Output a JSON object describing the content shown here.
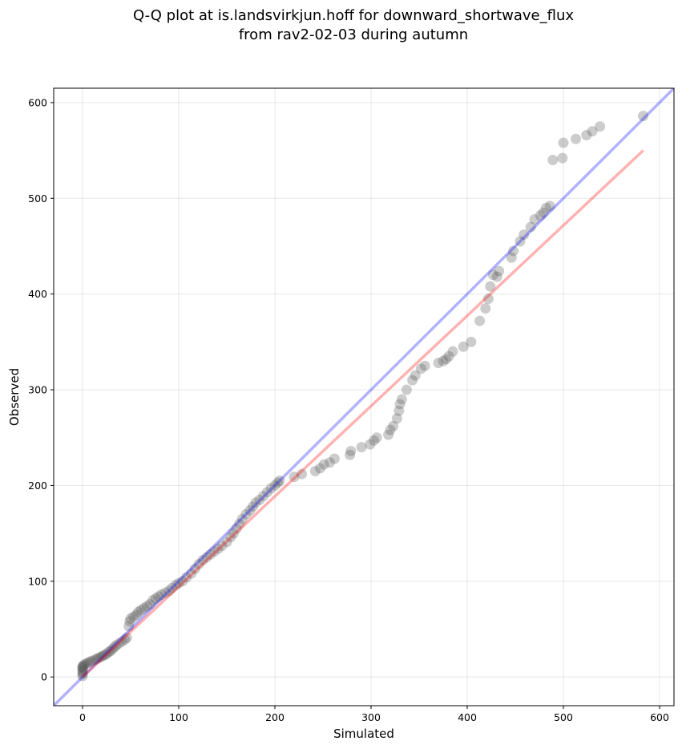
{
  "chart_data": {
    "type": "scatter",
    "title": "Q-Q plot at is.landsvirkjun.hoff for downward_shortwave_flux",
    "subtitle": "from rav2-02-03 during autumn",
    "xlabel": "Simulated",
    "ylabel": "Observed",
    "xlim": [
      -30,
      615
    ],
    "ylim": [
      -30,
      615
    ],
    "xticks": [
      0,
      100,
      200,
      300,
      400,
      500,
      600
    ],
    "yticks": [
      0,
      100,
      200,
      300,
      400,
      500,
      600
    ],
    "grid": true,
    "colors": {
      "points": "#555555",
      "identity_line": "#0000ff",
      "fit_line": "#ff0000"
    },
    "identity_line": {
      "x": [
        -30,
        615
      ],
      "y": [
        -30,
        615
      ]
    },
    "fit_line": {
      "x": [
        0,
        583
      ],
      "y": [
        0,
        550
      ]
    },
    "points": {
      "x": [
        0,
        0,
        0,
        0,
        0,
        0,
        0,
        1,
        2,
        4,
        6,
        8,
        10,
        13,
        15,
        17,
        19,
        21,
        23,
        25,
        27,
        29,
        31,
        33,
        35,
        38,
        41,
        44,
        46,
        48,
        49,
        50,
        53,
        56,
        58,
        61,
        64,
        67,
        70,
        73,
        76,
        79,
        82,
        86,
        90,
        93,
        97,
        100,
        104,
        108,
        113,
        117,
        121,
        125,
        129,
        133,
        137,
        141,
        145,
        150,
        154,
        157,
        160,
        163,
        166,
        170,
        174,
        177,
        180,
        184,
        188,
        192,
        196,
        200,
        203,
        205,
        220,
        228,
        242,
        247,
        251,
        257,
        262,
        278,
        279,
        290,
        299,
        303,
        306,
        318,
        320,
        323,
        327,
        329,
        330,
        332,
        337,
        343,
        346,
        352,
        356,
        370,
        375,
        378,
        381,
        385,
        396,
        404,
        413,
        419,
        422,
        424,
        427,
        431,
        433,
        446,
        448,
        455,
        459,
        466,
        470,
        476,
        479,
        482,
        486,
        489,
        499,
        500,
        513,
        524,
        530,
        538,
        583
      ],
      "y": [
        1,
        3,
        5,
        7,
        9,
        10,
        11,
        12,
        13,
        14,
        15,
        16,
        17,
        18,
        19,
        20,
        21,
        22,
        23,
        24,
        26,
        27,
        29,
        31,
        33,
        35,
        37,
        39,
        41,
        53,
        58,
        61,
        63,
        65,
        68,
        70,
        72,
        74,
        76,
        80,
        82,
        84,
        86,
        88,
        90,
        93,
        96,
        98,
        100,
        104,
        108,
        113,
        118,
        122,
        125,
        128,
        131,
        134,
        137,
        141,
        146,
        150,
        155,
        160,
        165,
        170,
        174,
        178,
        182,
        185,
        189,
        193,
        197,
        200,
        203,
        205,
        209,
        212,
        215,
        218,
        222,
        224,
        228,
        232,
        236,
        240,
        243,
        247,
        250,
        253,
        258,
        262,
        270,
        278,
        285,
        290,
        300,
        310,
        315,
        322,
        325,
        328,
        330,
        332,
        335,
        340,
        345,
        350,
        372,
        385,
        395,
        408,
        420,
        418,
        424,
        438,
        445,
        455,
        462,
        470,
        478,
        482,
        485,
        490,
        492,
        540,
        542,
        558,
        562,
        566,
        570,
        575,
        586
      ]
    }
  }
}
